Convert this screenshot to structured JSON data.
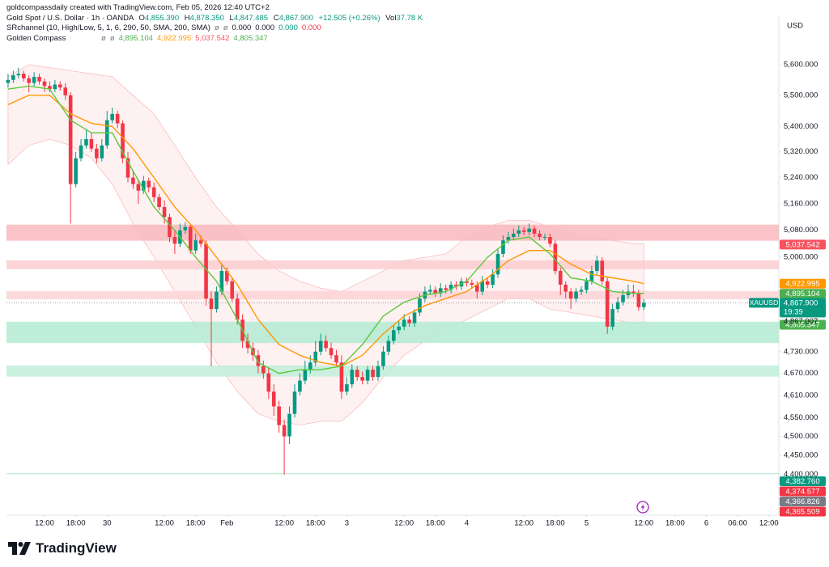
{
  "header": {
    "attribution": "goldcompassdaily created with TradingView.com, Feb 05, 2026 12:40 UTC+2",
    "symbol": "Gold Spot / U.S. Dollar · 1h · OANDA",
    "ohlc": [
      {
        "key": "O",
        "value": "4,855.390"
      },
      {
        "key": "H",
        "value": "4,878.350"
      },
      {
        "key": "L",
        "value": "4,847.485"
      },
      {
        "key": "C",
        "value": "4,867.900"
      }
    ],
    "change": "+12.505 (+0.26%)",
    "volume": {
      "key": "Vol",
      "value": "37.78 K"
    },
    "indicators": [
      {
        "name": "SRchannel (10, High/Low, 5, 1, 6, 290, 50, SMA, 200, SMA)",
        "values": [
          {
            "text": "ø",
            "color": "#787b86"
          },
          {
            "text": "ø",
            "color": "#787b86"
          },
          {
            "text": "0.000",
            "color": "#131722"
          },
          {
            "text": "0.000",
            "color": "#131722"
          },
          {
            "text": "0.000",
            "color": "#089981"
          },
          {
            "text": "0.000",
            "color": "#f23645"
          }
        ]
      },
      {
        "name": "Golden Compass",
        "values": [
          {
            "text": "ø",
            "color": "#787b86"
          },
          {
            "text": "ø",
            "color": "#787b86"
          },
          {
            "text": "4,895.104",
            "color": "#4caf50"
          },
          {
            "text": "4,922.995",
            "color": "#ff9800"
          },
          {
            "text": "5,037.542",
            "color": "#f7525f"
          },
          {
            "text": "4,805.347",
            "color": "#4caf50"
          }
        ]
      }
    ]
  },
  "chart_data": {
    "type": "candlestick",
    "currency": "USD",
    "log_scale": true,
    "grid": false,
    "xlim": [
      -0.3,
      147.9
    ],
    "ylim": [
      4296,
      5762
    ],
    "yticks": [
      {
        "value": 5600,
        "label": "5,600.000"
      },
      {
        "value": 5500,
        "label": "5,500.000"
      },
      {
        "value": 5400,
        "label": "5,400.000"
      },
      {
        "value": 5320,
        "label": "5,320.000"
      },
      {
        "value": 5240,
        "label": "5,240.000"
      },
      {
        "value": 5160,
        "label": "5,160.000"
      },
      {
        "value": 5080,
        "label": "5,080.000"
      },
      {
        "value": 5000,
        "label": "5,000.000"
      },
      {
        "value": 4730,
        "label": "4,730.000"
      },
      {
        "value": 4670,
        "label": "4,670.000"
      },
      {
        "value": 4610,
        "label": "4,610.000"
      },
      {
        "value": 4550,
        "label": "4,550.000"
      },
      {
        "value": 4500,
        "label": "4,500.000"
      },
      {
        "value": 4450,
        "label": "4,450.000"
      },
      {
        "value": 4400,
        "label": "4,400.000"
      }
    ],
    "xticks": [
      {
        "value": 7,
        "label": "12:00"
      },
      {
        "value": 13,
        "label": "18:00"
      },
      {
        "value": 19,
        "label": "30"
      },
      {
        "value": 30,
        "label": "12:00"
      },
      {
        "value": 36,
        "label": "18:00"
      },
      {
        "value": 42,
        "label": "Feb"
      },
      {
        "value": 53,
        "label": "12:00"
      },
      {
        "value": 59,
        "label": "18:00"
      },
      {
        "value": 65,
        "label": "3"
      },
      {
        "value": 76,
        "label": "12:00"
      },
      {
        "value": 82,
        "label": "18:00"
      },
      {
        "value": 88,
        "label": "4"
      },
      {
        "value": 99,
        "label": "12:00"
      },
      {
        "value": 105,
        "label": "18:00"
      },
      {
        "value": 111,
        "label": "5"
      },
      {
        "value": 122,
        "label": "12:00"
      },
      {
        "value": 128,
        "label": "18:00"
      },
      {
        "value": 134,
        "label": "6"
      },
      {
        "value": 140,
        "label": "06:00"
      },
      {
        "value": 146,
        "label": "12:00"
      }
    ],
    "candles": {
      "up_color": "#089981",
      "down_color": "#f23645",
      "open": [
        5540,
        5550,
        5565,
        5570,
        5555,
        5540,
        5560,
        5545,
        5530,
        5520,
        5535,
        5525,
        5500,
        5220,
        5300,
        5340,
        5360,
        5330,
        5300,
        5340,
        5420,
        5440,
        5410,
        5300,
        5240,
        5220,
        5200,
        5230,
        5210,
        5180,
        5150,
        5120,
        5060,
        5040,
        5080,
        5090,
        5020,
        5050,
        5040,
        4880,
        4850,
        4900,
        4960,
        4930,
        4880,
        4820,
        4760,
        4740,
        4720,
        4690,
        4670,
        4620,
        4580,
        4530,
        4500,
        4560,
        4620,
        4650,
        4680,
        4700,
        4730,
        4760,
        4740,
        4720,
        4700,
        4620,
        4640,
        4680,
        4660,
        4650,
        4680,
        4660,
        4690,
        4730,
        4760,
        4790,
        4800,
        4820,
        4810,
        4840,
        4880,
        4900,
        4905,
        4895,
        4910,
        4905,
        4920,
        4915,
        4930,
        4925,
        4920,
        4900,
        4930,
        4920,
        4950,
        5010,
        5050,
        5060,
        5070,
        5080,
        5075,
        5085,
        5070,
        5060,
        5060,
        5040,
        4960,
        4920,
        4900,
        4880,
        4900,
        4905,
        4930,
        4960,
        4990,
        4930,
        4800,
        4850,
        4870,
        4890,
        4900,
        4895,
        4855.39
      ],
      "high": [
        5570,
        5580,
        5590,
        5580,
        5565,
        5575,
        5570,
        5555,
        5545,
        5550,
        5545,
        5540,
        5510,
        5320,
        5360,
        5390,
        5380,
        5345,
        5360,
        5450,
        5460,
        5450,
        5420,
        5320,
        5260,
        5235,
        5245,
        5240,
        5225,
        5190,
        5170,
        5130,
        5080,
        5100,
        5105,
        5100,
        5070,
        5065,
        5050,
        4900,
        4915,
        4980,
        4970,
        4940,
        4895,
        4835,
        4780,
        4755,
        4735,
        4705,
        4685,
        4640,
        4595,
        4545,
        4580,
        4640,
        4670,
        4705,
        4720,
        4760,
        4780,
        4775,
        4755,
        4735,
        4720,
        4660,
        4695,
        4690,
        4675,
        4690,
        4690,
        4705,
        4745,
        4775,
        4805,
        4815,
        4835,
        4830,
        4850,
        4895,
        4915,
        4920,
        4915,
        4925,
        4920,
        4930,
        4930,
        4940,
        4940,
        4935,
        4930,
        4945,
        4940,
        4965,
        5025,
        5065,
        5075,
        5085,
        5095,
        5090,
        5100,
        5095,
        5080,
        5070,
        5070,
        5050,
        4970,
        4930,
        4910,
        4910,
        4915,
        4940,
        4975,
        5005,
        5000,
        4940,
        4865,
        4885,
        4905,
        4920,
        4920,
        4905,
        4878.35
      ],
      "low": [
        5525,
        5540,
        5555,
        5545,
        5510,
        5530,
        5535,
        5510,
        5510,
        5510,
        5515,
        5485,
        5100,
        5210,
        5290,
        5330,
        5320,
        5285,
        5290,
        5330,
        5410,
        5395,
        5285,
        5225,
        5205,
        5160,
        5190,
        5195,
        5165,
        5140,
        5100,
        5045,
        5010,
        5030,
        5070,
        5010,
        5010,
        5030,
        4860,
        4690,
        4840,
        4890,
        4920,
        4870,
        4805,
        4740,
        4725,
        4705,
        4670,
        4655,
        4600,
        4555,
        4510,
        4400,
        4480,
        4550,
        4610,
        4640,
        4670,
        4690,
        4720,
        4730,
        4710,
        4690,
        4600,
        4610,
        4630,
        4650,
        4640,
        4640,
        4650,
        4650,
        4680,
        4720,
        4750,
        4780,
        4790,
        4800,
        4800,
        4830,
        4870,
        4890,
        4885,
        4885,
        4895,
        4895,
        4905,
        4905,
        4915,
        4910,
        4880,
        4890,
        4910,
        4910,
        4940,
        5000,
        5040,
        5050,
        5060,
        5065,
        5065,
        5060,
        5050,
        5050,
        5030,
        4950,
        4890,
        4880,
        4850,
        4870,
        4890,
        4895,
        4920,
        4950,
        4920,
        4780,
        4790,
        4840,
        4860,
        4880,
        4885,
        4845,
        4847.485
      ],
      "close": [
        5550,
        5565,
        5570,
        5555,
        5540,
        5560,
        5545,
        5530,
        5520,
        5535,
        5525,
        5500,
        5220,
        5300,
        5340,
        5360,
        5330,
        5300,
        5340,
        5420,
        5440,
        5410,
        5300,
        5240,
        5220,
        5200,
        5230,
        5210,
        5180,
        5150,
        5120,
        5060,
        5040,
        5080,
        5090,
        5020,
        5050,
        5040,
        4880,
        4850,
        4900,
        4960,
        4930,
        4880,
        4820,
        4760,
        4740,
        4720,
        4690,
        4670,
        4620,
        4580,
        4530,
        4500,
        4560,
        4620,
        4650,
        4680,
        4700,
        4730,
        4760,
        4740,
        4720,
        4700,
        4620,
        4640,
        4680,
        4660,
        4650,
        4680,
        4660,
        4690,
        4730,
        4760,
        4790,
        4800,
        4820,
        4810,
        4840,
        4880,
        4900,
        4905,
        4895,
        4910,
        4905,
        4920,
        4915,
        4930,
        4925,
        4920,
        4900,
        4930,
        4920,
        4950,
        5010,
        5050,
        5060,
        5070,
        5080,
        5075,
        5085,
        5070,
        5060,
        5060,
        5040,
        4960,
        4920,
        4900,
        4880,
        4900,
        4905,
        4930,
        4960,
        4990,
        4930,
        4800,
        4850,
        4870,
        4890,
        4900,
        4895,
        4855.39,
        4867.9
      ]
    },
    "indicator_x": [
      0,
      4,
      8,
      12,
      16,
      20,
      24,
      28,
      32,
      36,
      40,
      44,
      48,
      52,
      56,
      60,
      64,
      68,
      72,
      76,
      80,
      84,
      88,
      92,
      96,
      100,
      104,
      108,
      112,
      116,
      120,
      122
    ],
    "band": {
      "color": "#f23645",
      "upper": [
        5560,
        5600,
        5590,
        5580,
        5570,
        5560,
        5500,
        5440,
        5340,
        5240,
        5150,
        5080,
        5010,
        4960,
        4930,
        4910,
        4900,
        4930,
        4960,
        4990,
        5000,
        5010,
        5060,
        5090,
        5110,
        5110,
        5090,
        5070,
        5060,
        5050,
        5040,
        5040
      ],
      "lower": [
        5280,
        5340,
        5360,
        5340,
        5300,
        5220,
        5100,
        5000,
        4900,
        4800,
        4700,
        4620,
        4560,
        4540,
        4530,
        4540,
        4540,
        4590,
        4660,
        4720,
        4760,
        4790,
        4820,
        4850,
        4880,
        4880,
        4850,
        4840,
        4830,
        4820,
        4810,
        4810
      ]
    },
    "lines": [
      {
        "color": "#ff9800",
        "values": [
          5470,
          5500,
          5500,
          5440,
          5410,
          5400,
          5330,
          5240,
          5150,
          5080,
          5000,
          4920,
          4820,
          4750,
          4720,
          4700,
          4690,
          4720,
          4780,
          4830,
          4860,
          4880,
          4900,
          4940,
          4990,
          5020,
          5020,
          4980,
          4950,
          4940,
          4930,
          4922.995
        ]
      },
      {
        "color": "#5cc93a",
        "values": [
          5520,
          5530,
          5520,
          5420,
          5380,
          5380,
          5260,
          5150,
          5080,
          5000,
          4930,
          4820,
          4700,
          4670,
          4680,
          4680,
          4690,
          4750,
          4830,
          4870,
          4890,
          4900,
          4930,
          5000,
          5050,
          5060,
          5010,
          4940,
          4930,
          4900,
          4895,
          4895.104
        ]
      }
    ],
    "zones": [
      {
        "low": 5049,
        "high": 5097,
        "color": "#f8b8bd"
      },
      {
        "low": 4965,
        "high": 4991,
        "color": "#fbcdd0"
      },
      {
        "low": 4878,
        "high": 4902,
        "color": "#fbd3d6"
      },
      {
        "low": 4754,
        "high": 4814,
        "color": "#b3ebd3"
      },
      {
        "low": 4661,
        "high": 4692,
        "color": "#c1efda"
      }
    ],
    "level": {
      "value": 4402,
      "color": "#a5e5cb"
    },
    "current": {
      "symbol": "XAUUSD",
      "value": 4867.9,
      "label": "4,867.900",
      "countdown": "19:39",
      "color": "#089981",
      "bid_label": "4,867.007"
    },
    "price_labels": [
      {
        "value": 5037.542,
        "label": "5,037.542",
        "color": "#f7525f"
      },
      {
        "value": 4922.995,
        "label": "4,922.995",
        "color": "#ff9800"
      },
      {
        "value": 4895.104,
        "label": "4,895.104",
        "color": "#4caf50"
      },
      {
        "value": 4805.347,
        "label": "4,805.347",
        "color": "#4caf50"
      },
      {
        "value": 4382.76,
        "label": "4,382.760",
        "color": "#089981"
      },
      {
        "value": 4374.577,
        "label": "4,374.577",
        "color": "#f23645"
      },
      {
        "value": 4366.826,
        "label": "4,366.826",
        "color": "#787b86"
      },
      {
        "value": 4365.509,
        "label": "4,365.509",
        "color": "#f23645"
      }
    ]
  },
  "footer": {
    "brand": "TradingView"
  }
}
